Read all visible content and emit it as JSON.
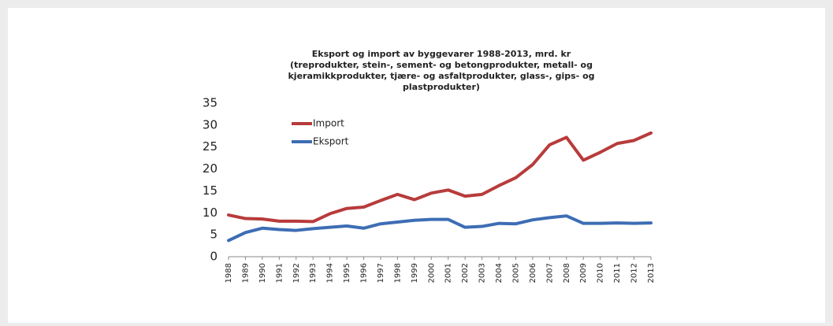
{
  "chart_data": {
    "type": "line",
    "title": "Eksport og import av byggevarer 1988-2013, mrd. kr",
    "subtitle": [
      "(treprodukter, stein-, sement- og betongprodukter, metall- og",
      "kjeramikkprodukter, tjære- og asfaltprodukter, glass-, gips- og",
      "plastprodukter)"
    ],
    "x": [
      1988,
      1989,
      1990,
      1991,
      1992,
      1993,
      1994,
      1995,
      1996,
      1997,
      1998,
      1999,
      2000,
      2001,
      2002,
      2003,
      2004,
      2005,
      2006,
      2007,
      2008,
      2009,
      2010,
      2011,
      2012,
      2013
    ],
    "series": [
      {
        "name": "Import",
        "color": "#b83b3b",
        "values": [
          9.5,
          8.7,
          8.6,
          8.1,
          8.1,
          8.0,
          9.8,
          11.0,
          11.3,
          12.8,
          14.2,
          13.0,
          14.5,
          15.2,
          13.8,
          14.2,
          16.2,
          18.0,
          21.0,
          25.5,
          27.2,
          22.0,
          23.8,
          25.8,
          26.5,
          28.2
        ]
      },
      {
        "name": "Eksport",
        "color": "#3d6db4",
        "values": [
          3.7,
          5.5,
          6.5,
          6.2,
          6.0,
          6.4,
          6.7,
          7.0,
          6.5,
          7.5,
          7.9,
          8.3,
          8.5,
          8.5,
          6.7,
          6.9,
          7.6,
          7.5,
          8.4,
          8.9,
          9.3,
          7.6,
          7.6,
          7.7,
          7.6,
          7.7
        ]
      }
    ],
    "xlim": [
      1988,
      2013
    ],
    "xticks": [
      1988,
      1989,
      1990,
      1991,
      1992,
      1993,
      1994,
      1995,
      1996,
      1997,
      1998,
      1999,
      2000,
      2001,
      2002,
      2003,
      2004,
      2005,
      2006,
      2007,
      2008,
      2009,
      2010,
      2011,
      2012,
      2013
    ],
    "ylim": [
      0,
      35
    ],
    "yticks": [
      0,
      5,
      10,
      15,
      20,
      25,
      30,
      35
    ],
    "grid": false,
    "legend": "top-left"
  }
}
